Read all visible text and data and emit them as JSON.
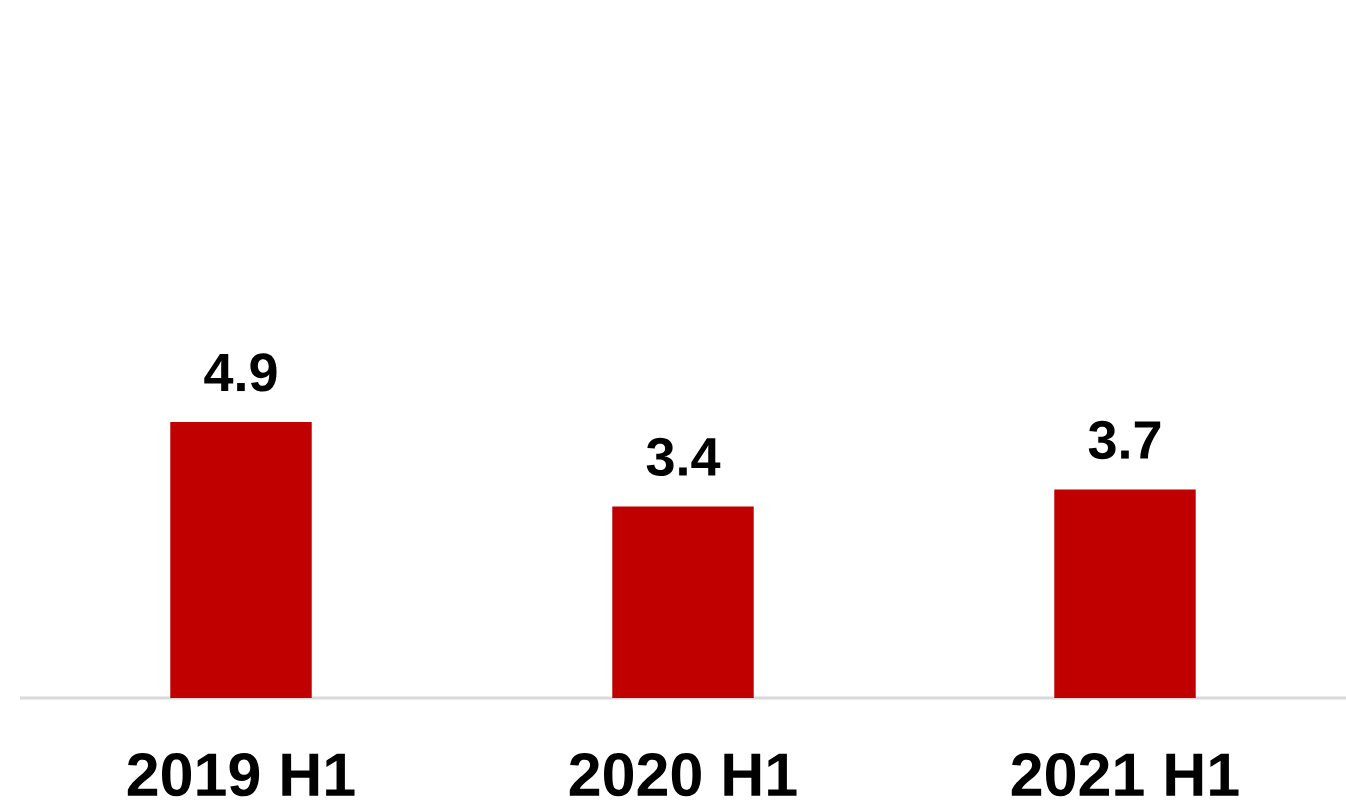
{
  "chart_data": {
    "type": "bar",
    "categories": [
      "2019 H1",
      "2020 H1",
      "2021 H1"
    ],
    "values": [
      4.9,
      3.4,
      3.7
    ],
    "color": "#c00000",
    "data_labels": true,
    "tick_labels": "x"
  }
}
